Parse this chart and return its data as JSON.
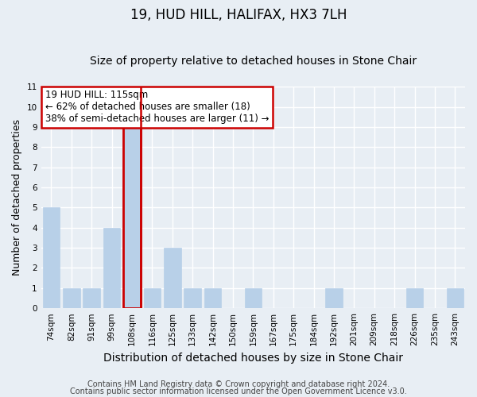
{
  "title": "19, HUD HILL, HALIFAX, HX3 7LH",
  "subtitle": "Size of property relative to detached houses in Stone Chair",
  "xlabel": "Distribution of detached houses by size in Stone Chair",
  "ylabel": "Number of detached properties",
  "footnote1": "Contains HM Land Registry data © Crown copyright and database right 2024.",
  "footnote2": "Contains public sector information licensed under the Open Government Licence v3.0.",
  "categories": [
    "74sqm",
    "82sqm",
    "91sqm",
    "99sqm",
    "108sqm",
    "116sqm",
    "125sqm",
    "133sqm",
    "142sqm",
    "150sqm",
    "159sqm",
    "167sqm",
    "175sqm",
    "184sqm",
    "192sqm",
    "201sqm",
    "209sqm",
    "218sqm",
    "226sqm",
    "235sqm",
    "243sqm"
  ],
  "values": [
    5,
    1,
    1,
    4,
    9,
    1,
    3,
    1,
    1,
    0,
    1,
    0,
    0,
    0,
    1,
    0,
    0,
    0,
    1,
    0,
    1
  ],
  "bar_color": "#b8d0e8",
  "highlight_index": 4,
  "highlight_line_color": "#cc0000",
  "annotation_title": "19 HUD HILL: 115sqm",
  "annotation_line1": "← 62% of detached houses are smaller (18)",
  "annotation_line2": "38% of semi-detached houses are larger (11) →",
  "annotation_box_color": "#cc0000",
  "ylim": [
    0,
    11
  ],
  "yticks": [
    0,
    1,
    2,
    3,
    4,
    5,
    6,
    7,
    8,
    9,
    10,
    11
  ],
  "background_color": "#e8eef4",
  "plot_bg_color": "#e8eef4",
  "grid_color": "#ffffff",
  "title_fontsize": 12,
  "subtitle_fontsize": 10,
  "xlabel_fontsize": 10,
  "ylabel_fontsize": 9,
  "tick_fontsize": 7.5,
  "annotation_fontsize": 8.5,
  "footnote_fontsize": 7
}
